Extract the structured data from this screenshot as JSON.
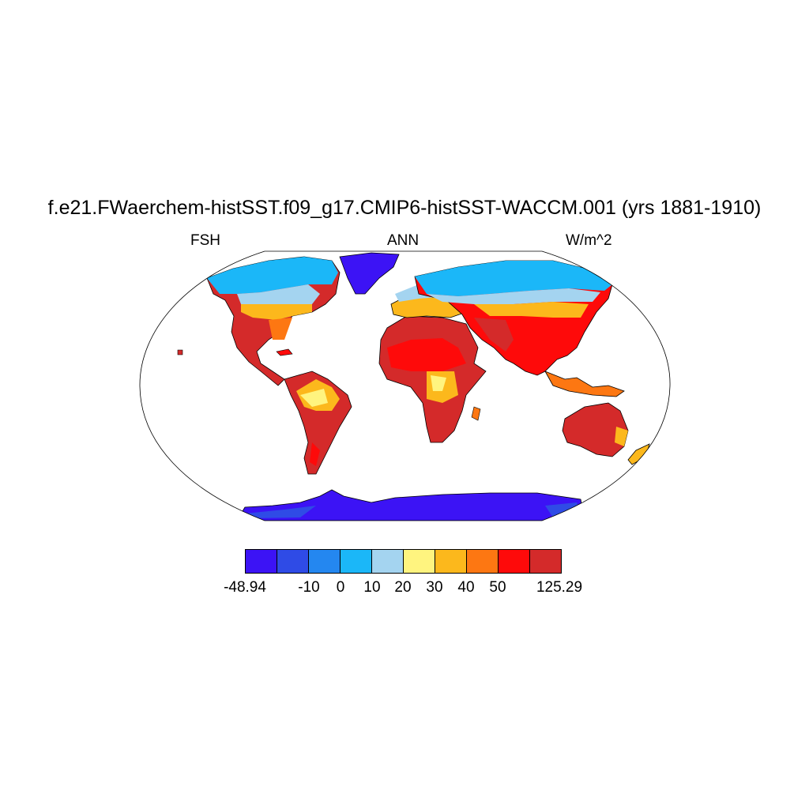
{
  "title": "f.e21.FWaerchem-histSST.f09_g17.CMIP6-histSST-WACCM.001 (yrs 1881-1910)",
  "left_label": "FSH",
  "center_label": "ANN",
  "right_label": "W/m^2",
  "colorbar": {
    "colors": [
      "#3c13f5",
      "#2f4be6",
      "#2487f0",
      "#1bb7f8",
      "#a4d4f0",
      "#fff47f",
      "#fcb81c",
      "#fd7712",
      "#fe0a0a",
      "#d42a2a"
    ],
    "labels": [
      "-48.94",
      "-10",
      "0",
      "10",
      "20",
      "30",
      "40",
      "50",
      "125.29"
    ]
  },
  "map": {
    "projection": "Robinson",
    "ocean_color": "#ffffff",
    "coastline_color": "#000000"
  }
}
